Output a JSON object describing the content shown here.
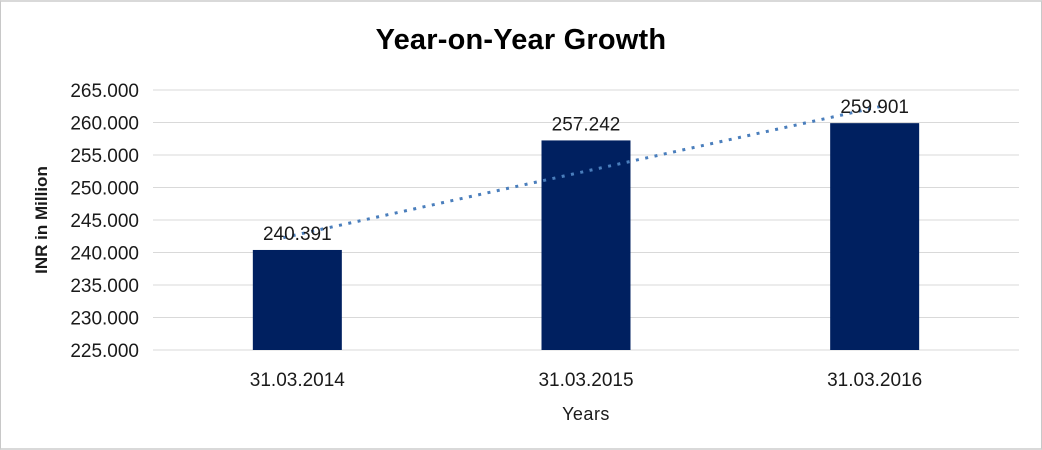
{
  "chart_data": {
    "type": "bar",
    "title": "Year-on-Year Growth",
    "xlabel": "Years",
    "ylabel": "INR in Million",
    "categories": [
      "31.03.2014",
      "31.03.2015",
      "31.03.2016"
    ],
    "values": [
      240.391,
      257.242,
      259.901
    ],
    "value_labels": [
      "240.391",
      "257.242",
      "259.901"
    ],
    "ylim": [
      225,
      265
    ],
    "ytick_step": 5,
    "yticks": [
      265,
      260,
      255,
      250,
      245,
      240,
      235,
      230,
      225
    ],
    "ytick_labels": [
      "265.000",
      "260.000",
      "255.000",
      "250.000",
      "245.000",
      "240.000",
      "235.000",
      "230.000",
      "225.000"
    ],
    "grid": true,
    "legend": "none",
    "trendline": {
      "type": "linear",
      "style": "dotted"
    },
    "colors": {
      "bar": "#002060",
      "trendline": "#4a7ebc",
      "gridline": "#d9d9d9",
      "text": "#1a1a1a",
      "frame_border": "#c8c8c8",
      "background": "#ffffff"
    }
  }
}
